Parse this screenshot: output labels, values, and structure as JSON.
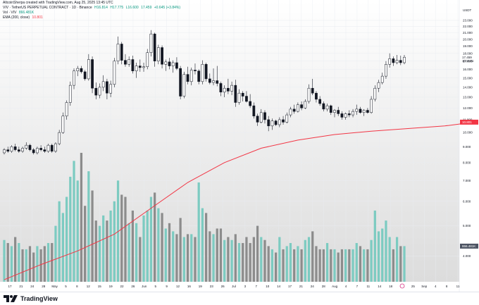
{
  "header": {
    "attribution": "AltcoinSherpa created with TradingView.com, Aug 25, 2025 13:45 UTC",
    "symbol_line": "VIV · TetherUS PERPETUAL CONTRACT · 1D · Binance",
    "ohlc": [
      "H16.814",
      "H17.775",
      "L16.600",
      "17.459",
      "+0.645 (+3.84%)"
    ],
    "vol_label": "Vol · VIV",
    "vol_value": "866.481K",
    "ema_label": "EMA (200, close)",
    "ema_value": "10.801"
  },
  "price_axis": {
    "unit_label": "USDT",
    "ticks": [
      "23.000",
      "22.000",
      "21.000",
      "20.000",
      "19.000",
      "18.000",
      "17.000",
      "16.000",
      "15.000",
      "14.000",
      "13.000",
      "12.000",
      "11.000",
      "10.000",
      "9.000",
      "8.000",
      "7.000",
      "6.000",
      "5.000",
      "4.000"
    ],
    "last_price_label": "17.459",
    "countdown_label": "10:14:51",
    "ema_label": "10.801",
    "volume_label": "866.481K"
  },
  "time_axis": {
    "ticks": [
      "17",
      "21",
      "24",
      "28",
      "May",
      "5",
      "8",
      "12",
      "15",
      "19",
      "22",
      "26",
      "Jun",
      "5",
      "9",
      "12",
      "16",
      "19",
      "23",
      "26",
      "Jul",
      "3",
      "7",
      "10",
      "14",
      "17",
      "21",
      "24",
      "28",
      "Aug",
      "4",
      "7",
      "11",
      "14",
      "18",
      "21",
      "25",
      "Sep",
      "4",
      "8",
      "11"
    ]
  },
  "footer": {
    "brand": "TradingView"
  },
  "colors": {
    "up": "#26a69a",
    "down": "#131722",
    "vol_up": "#7ccbc1",
    "vol_down": "#8c8c8c",
    "ema": "#f23645",
    "grid": "#e9ecf1"
  },
  "icons": {
    "logo": "tradingview-logo-icon"
  },
  "chart_data": {
    "type": "candlestick",
    "title": "VIV · TetherUS PERPETUAL CONTRACT · 1D · Binance",
    "y_scale": "log",
    "ylim": [
      3.3,
      25.4
    ],
    "series_ohlc": [
      [
        8.6,
        8.9,
        8.5,
        8.8
      ],
      [
        8.8,
        9.0,
        8.6,
        8.7
      ],
      [
        8.7,
        9.1,
        8.6,
        9.0
      ],
      [
        9.0,
        9.2,
        8.7,
        8.8
      ],
      [
        8.8,
        9.0,
        8.6,
        8.7
      ],
      [
        8.7,
        9.0,
        8.6,
        8.9
      ],
      [
        8.9,
        9.3,
        8.8,
        9.1
      ],
      [
        9.1,
        9.2,
        8.7,
        8.8
      ],
      [
        8.8,
        8.9,
        8.5,
        8.6
      ],
      [
        8.6,
        9.0,
        8.5,
        8.9
      ],
      [
        8.9,
        9.1,
        8.7,
        8.8
      ],
      [
        8.8,
        9.0,
        8.6,
        8.7
      ],
      [
        8.7,
        9.2,
        8.6,
        9.1
      ],
      [
        9.1,
        9.2,
        8.6,
        8.7
      ],
      [
        8.7,
        9.3,
        8.6,
        9.2
      ],
      [
        9.2,
        10.2,
        9.1,
        10.0
      ],
      [
        10.0,
        11.6,
        9.9,
        11.3
      ],
      [
        11.3,
        12.7,
        11.0,
        12.5
      ],
      [
        12.5,
        14.6,
        12.2,
        14.2
      ],
      [
        14.2,
        16.1,
        13.8,
        15.8
      ],
      [
        15.8,
        16.4,
        15.2,
        16.1
      ],
      [
        16.1,
        16.4,
        15.5,
        15.7
      ],
      [
        15.7,
        15.9,
        14.7,
        14.9
      ],
      [
        14.9,
        17.9,
        14.7,
        17.2
      ],
      [
        17.2,
        17.6,
        13.4,
        13.9
      ],
      [
        13.9,
        14.5,
        12.8,
        13.2
      ],
      [
        13.2,
        14.4,
        12.9,
        14.0
      ],
      [
        14.0,
        15.3,
        13.6,
        14.6
      ],
      [
        14.6,
        14.9,
        12.8,
        13.4
      ],
      [
        13.4,
        14.7,
        13.0,
        14.3
      ],
      [
        14.3,
        17.4,
        14.0,
        17.0
      ],
      [
        17.0,
        20.4,
        16.6,
        19.3
      ],
      [
        19.3,
        19.6,
        16.6,
        17.1
      ],
      [
        17.1,
        17.9,
        16.3,
        16.6
      ],
      [
        16.6,
        17.6,
        16.3,
        17.2
      ],
      [
        17.2,
        17.7,
        15.5,
        15.8
      ],
      [
        15.8,
        16.8,
        15.0,
        16.4
      ],
      [
        16.4,
        17.2,
        15.7,
        16.2
      ],
      [
        16.2,
        16.8,
        15.7,
        16.3
      ],
      [
        16.3,
        18.6,
        16.0,
        18.1
      ],
      [
        18.1,
        21.4,
        17.6,
        20.8
      ],
      [
        20.8,
        21.0,
        16.3,
        17.0
      ],
      [
        17.0,
        19.2,
        16.6,
        18.8
      ],
      [
        18.8,
        19.1,
        16.1,
        16.6
      ],
      [
        16.6,
        17.2,
        15.8,
        16.9
      ],
      [
        16.9,
        17.4,
        16.0,
        16.4
      ],
      [
        16.4,
        17.1,
        15.6,
        16.8
      ],
      [
        16.8,
        17.5,
        15.9,
        16.1
      ],
      [
        16.1,
        16.4,
        12.8,
        13.1
      ],
      [
        13.1,
        15.7,
        12.9,
        15.4
      ],
      [
        15.4,
        16.3,
        14.3,
        14.6
      ],
      [
        14.6,
        16.2,
        14.2,
        15.9
      ],
      [
        15.9,
        16.7,
        15.4,
        15.8
      ],
      [
        15.8,
        16.0,
        14.3,
        14.6
      ],
      [
        14.6,
        17.1,
        14.3,
        16.6
      ],
      [
        16.6,
        16.8,
        14.6,
        14.9
      ],
      [
        14.9,
        15.5,
        14.3,
        14.5
      ],
      [
        14.5,
        16.1,
        14.2,
        14.7
      ],
      [
        14.7,
        16.4,
        14.1,
        14.4
      ],
      [
        14.4,
        14.6,
        13.1,
        13.5
      ],
      [
        13.5,
        14.2,
        13.0,
        13.9
      ],
      [
        13.9,
        14.9,
        13.3,
        13.6
      ],
      [
        13.6,
        14.6,
        13.2,
        14.2
      ],
      [
        14.2,
        14.8,
        12.1,
        12.5
      ],
      [
        12.5,
        13.8,
        12.3,
        13.4
      ],
      [
        13.4,
        13.6,
        12.6,
        13.1
      ],
      [
        13.1,
        13.6,
        12.5,
        12.6
      ],
      [
        12.6,
        13.3,
        12.0,
        12.2
      ],
      [
        12.2,
        12.5,
        11.1,
        11.3
      ],
      [
        11.3,
        11.5,
        10.5,
        10.8
      ],
      [
        10.8,
        11.9,
        10.7,
        11.6
      ],
      [
        11.6,
        11.8,
        10.7,
        11.0
      ],
      [
        11.0,
        11.3,
        10.1,
        10.5
      ],
      [
        10.5,
        11.1,
        10.2,
        10.9
      ],
      [
        10.9,
        11.0,
        10.5,
        10.6
      ],
      [
        10.6,
        11.2,
        10.4,
        11.0
      ],
      [
        11.0,
        11.3,
        10.6,
        10.8
      ],
      [
        10.8,
        11.6,
        10.7,
        11.4
      ],
      [
        11.4,
        12.1,
        11.2,
        11.9
      ],
      [
        11.9,
        12.3,
        11.5,
        11.7
      ],
      [
        11.7,
        12.5,
        11.6,
        12.3
      ],
      [
        12.3,
        12.6,
        11.8,
        12.0
      ],
      [
        12.0,
        12.8,
        11.9,
        12.6
      ],
      [
        12.6,
        14.3,
        12.4,
        13.9
      ],
      [
        13.9,
        14.9,
        13.2,
        13.4
      ],
      [
        13.4,
        13.6,
        12.5,
        12.8
      ],
      [
        12.8,
        13.1,
        12.2,
        12.4
      ],
      [
        12.4,
        12.6,
        11.7,
        11.9
      ],
      [
        11.9,
        12.4,
        11.7,
        12.2
      ],
      [
        12.2,
        12.3,
        11.4,
        11.6
      ],
      [
        11.6,
        11.9,
        11.2,
        11.8
      ],
      [
        11.8,
        12.1,
        11.3,
        11.5
      ],
      [
        11.5,
        11.7,
        11.0,
        11.2
      ],
      [
        11.2,
        11.6,
        11.0,
        11.5
      ],
      [
        11.5,
        11.8,
        11.2,
        11.4
      ],
      [
        11.4,
        11.9,
        11.2,
        11.7
      ],
      [
        11.7,
        12.3,
        11.4,
        11.9
      ],
      [
        11.9,
        12.1,
        11.5,
        11.6
      ],
      [
        11.6,
        11.9,
        11.3,
        11.8
      ],
      [
        11.8,
        12.0,
        11.5,
        11.6
      ],
      [
        11.6,
        13.1,
        11.5,
        12.8
      ],
      [
        12.8,
        14.2,
        12.6,
        13.9
      ],
      [
        13.9,
        14.8,
        13.5,
        14.5
      ],
      [
        14.5,
        15.6,
        14.3,
        15.2
      ],
      [
        15.2,
        17.0,
        14.9,
        16.6
      ],
      [
        16.6,
        18.0,
        16.2,
        17.3
      ],
      [
        17.3,
        17.6,
        16.4,
        16.8
      ],
      [
        16.8,
        17.8,
        16.6,
        17.1
      ],
      [
        17.1,
        17.7,
        16.5,
        16.8
      ],
      [
        16.8,
        17.8,
        16.6,
        17.5
      ]
    ],
    "volume": [
      {
        "v": 4.5,
        "up": true
      },
      {
        "v": 4.4,
        "up": false
      },
      {
        "v": 4.3,
        "up": true
      },
      {
        "v": 4.6,
        "up": false
      },
      {
        "v": 4.4,
        "up": true
      },
      {
        "v": 4.2,
        "up": false
      },
      {
        "v": 4.2,
        "up": true
      },
      {
        "v": 4.3,
        "up": false
      },
      {
        "v": 4.1,
        "up": false
      },
      {
        "v": 4.3,
        "up": true
      },
      {
        "v": 4.2,
        "up": false
      },
      {
        "v": 4.3,
        "up": false
      },
      {
        "v": 4.4,
        "up": true
      },
      {
        "v": 4.4,
        "up": false
      },
      {
        "v": 5.0,
        "up": true
      },
      {
        "v": 6.0,
        "up": true
      },
      {
        "v": 5.5,
        "up": true
      },
      {
        "v": 6.2,
        "up": true
      },
      {
        "v": 7.2,
        "up": true
      },
      {
        "v": 8.1,
        "up": true
      },
      {
        "v": 7.0,
        "up": true
      },
      {
        "v": 8.6,
        "up": false
      },
      {
        "v": 5.8,
        "up": false
      },
      {
        "v": 7.5,
        "up": true
      },
      {
        "v": 6.5,
        "up": false
      },
      {
        "v": 5.2,
        "up": false
      },
      {
        "v": 5.0,
        "up": true
      },
      {
        "v": 5.4,
        "up": true
      },
      {
        "v": 5.2,
        "up": false
      },
      {
        "v": 5.6,
        "up": true
      },
      {
        "v": 6.0,
        "up": true
      },
      {
        "v": 7.0,
        "up": true
      },
      {
        "v": 6.3,
        "up": false
      },
      {
        "v": 6.2,
        "up": false
      },
      {
        "v": 5.1,
        "up": true
      },
      {
        "v": 5.6,
        "up": false
      },
      {
        "v": 5.1,
        "up": true
      },
      {
        "v": 4.6,
        "up": false
      },
      {
        "v": 5.4,
        "up": true
      },
      {
        "v": 5.6,
        "up": true
      },
      {
        "v": 6.2,
        "up": true
      },
      {
        "v": 6.4,
        "up": false
      },
      {
        "v": 5.7,
        "up": true
      },
      {
        "v": 5.5,
        "up": false
      },
      {
        "v": 4.9,
        "up": true
      },
      {
        "v": 5.1,
        "up": false
      },
      {
        "v": 4.8,
        "up": true
      },
      {
        "v": 4.7,
        "up": false
      },
      {
        "v": 5.3,
        "up": false
      },
      {
        "v": 4.6,
        "up": true
      },
      {
        "v": 4.7,
        "up": false
      },
      {
        "v": 4.7,
        "up": true
      },
      {
        "v": 4.6,
        "up": false
      },
      {
        "v": 6.9,
        "up": true
      },
      {
        "v": 5.7,
        "up": true
      },
      {
        "v": 5.5,
        "up": false
      },
      {
        "v": 4.8,
        "up": false
      },
      {
        "v": 4.7,
        "up": true
      },
      {
        "v": 4.9,
        "up": false
      },
      {
        "v": 4.9,
        "up": false
      },
      {
        "v": 4.5,
        "up": true
      },
      {
        "v": 4.6,
        "up": false
      },
      {
        "v": 4.5,
        "up": true
      },
      {
        "v": 4.7,
        "up": false
      },
      {
        "v": 4.4,
        "up": true
      },
      {
        "v": 4.4,
        "up": false
      },
      {
        "v": 4.6,
        "up": false
      },
      {
        "v": 4.4,
        "up": false
      },
      {
        "v": 4.6,
        "up": false
      },
      {
        "v": 5.0,
        "up": false
      },
      {
        "v": 4.6,
        "up": true
      },
      {
        "v": 4.5,
        "up": false
      },
      {
        "v": 4.3,
        "up": false
      },
      {
        "v": 4.2,
        "up": true
      },
      {
        "v": 4.1,
        "up": false
      },
      {
        "v": 4.6,
        "up": true
      },
      {
        "v": 4.2,
        "up": false
      },
      {
        "v": 4.3,
        "up": true
      },
      {
        "v": 4.4,
        "up": true
      },
      {
        "v": 4.2,
        "up": false
      },
      {
        "v": 4.3,
        "up": true
      },
      {
        "v": 4.2,
        "up": false
      },
      {
        "v": 4.5,
        "up": true
      },
      {
        "v": 4.6,
        "up": true
      },
      {
        "v": 4.8,
        "up": false
      },
      {
        "v": 4.3,
        "up": false
      },
      {
        "v": 4.2,
        "up": false
      },
      {
        "v": 4.2,
        "up": false
      },
      {
        "v": 4.4,
        "up": true
      },
      {
        "v": 4.2,
        "up": false
      },
      {
        "v": 4.2,
        "up": true
      },
      {
        "v": 4.1,
        "up": false
      },
      {
        "v": 4.2,
        "up": false
      },
      {
        "v": 4.2,
        "up": true
      },
      {
        "v": 4.2,
        "up": false
      },
      {
        "v": 4.2,
        "up": true
      },
      {
        "v": 4.4,
        "up": true
      },
      {
        "v": 4.3,
        "up": false
      },
      {
        "v": 4.2,
        "up": true
      },
      {
        "v": 4.2,
        "up": false
      },
      {
        "v": 4.5,
        "up": true
      },
      {
        "v": 5.6,
        "up": true
      },
      {
        "v": 4.8,
        "up": true
      },
      {
        "v": 4.9,
        "up": true
      },
      {
        "v": 5.2,
        "up": true
      },
      {
        "v": 4.6,
        "up": true
      },
      {
        "v": 4.2,
        "up": false
      },
      {
        "v": 4.6,
        "up": true
      },
      {
        "v": 4.3,
        "up": false
      },
      {
        "v": 4.3,
        "up": true
      }
    ],
    "ema": [
      [
        0,
        3.35
      ],
      [
        10,
        3.75
      ],
      [
        20,
        4.15
      ],
      [
        30,
        4.7
      ],
      [
        40,
        5.7
      ],
      [
        50,
        6.9
      ],
      [
        60,
        8.0
      ],
      [
        70,
        8.9
      ],
      [
        80,
        9.45
      ],
      [
        90,
        9.85
      ],
      [
        100,
        10.1
      ],
      [
        110,
        10.3
      ],
      [
        120,
        10.5
      ],
      [
        128,
        10.801
      ]
    ],
    "ylabel": "",
    "xlabel": ""
  }
}
